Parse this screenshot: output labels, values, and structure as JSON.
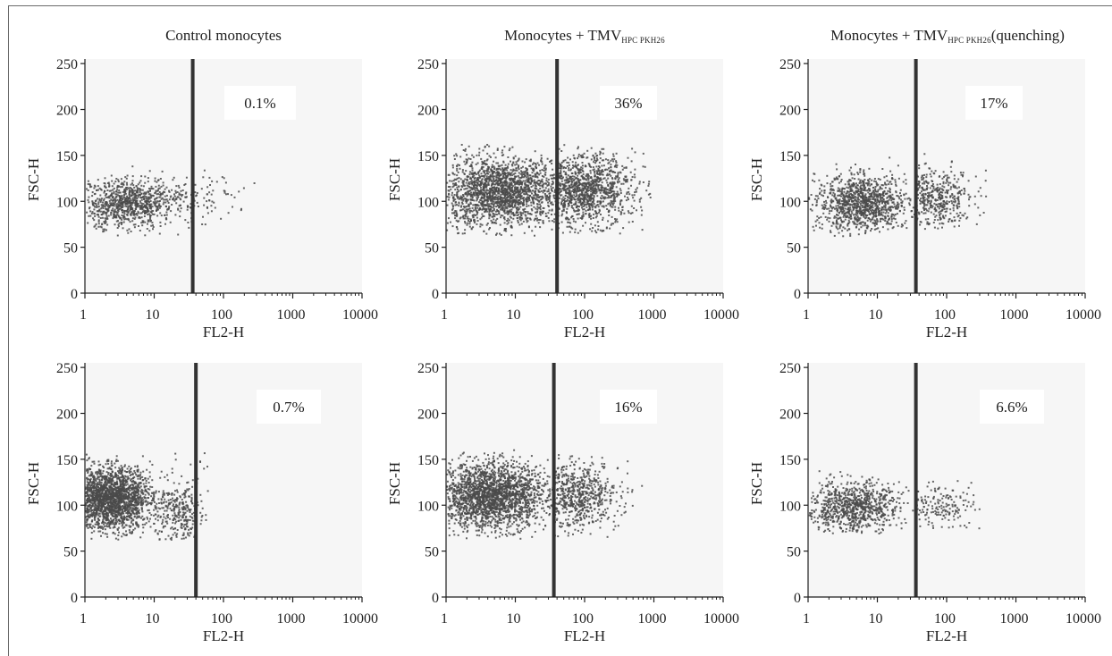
{
  "chart_data": [
    {
      "type": "scatter",
      "panel_id": "r1c1",
      "title_main": "Control monocytes",
      "title_sub": "",
      "title_suffix": "",
      "xlabel": "FL2-H",
      "ylabel": "FSC-H",
      "x_scale": "log",
      "xlim": [
        1,
        10000
      ],
      "ylim": [
        0,
        255
      ],
      "x_ticks": [
        "1",
        "10",
        "100",
        "1000",
        "10000"
      ],
      "y_ticks": [
        "0",
        "50",
        "100",
        "150",
        "200",
        "250"
      ],
      "gate_x": 36,
      "gate_percent": "0.1%",
      "scatter_clusters": [
        {
          "x_center": 4,
          "x_spread": 0.33,
          "y_center": 97,
          "y_spread": 13,
          "n": 850,
          "x_min": 1,
          "x_max": 35,
          "y_min": 60,
          "y_max": 158
        },
        {
          "x_center": 25,
          "x_spread": 0.4,
          "y_center": 104,
          "y_spread": 13,
          "n": 140,
          "x_min": 10,
          "x_max": 280,
          "y_min": 70,
          "y_max": 135
        }
      ],
      "point_count_note": "individual events rendered"
    },
    {
      "type": "scatter",
      "panel_id": "r1c2",
      "title_main": "Monocytes + TMV",
      "title_sub": "HPC PKH26",
      "title_suffix": "",
      "xlabel": "FL2-H",
      "ylabel": "FSC-H",
      "x_scale": "log",
      "xlim": [
        1,
        10000
      ],
      "ylim": [
        0,
        255
      ],
      "x_ticks": [
        "1",
        "10",
        "100",
        "1000",
        "10000"
      ],
      "y_ticks": [
        "0",
        "50",
        "100",
        "150",
        "200",
        "250"
      ],
      "gate_x": 40,
      "gate_percent": "36%",
      "scatter_clusters": [
        {
          "x_center": 6,
          "x_spread": 0.45,
          "y_center": 110,
          "y_spread": 19,
          "n": 1900,
          "x_min": 1,
          "x_max": 39,
          "y_min": 62,
          "y_max": 162
        },
        {
          "x_center": 90,
          "x_spread": 0.38,
          "y_center": 112,
          "y_spread": 19,
          "n": 1100,
          "x_min": 40,
          "x_max": 1000,
          "y_min": 63,
          "y_max": 162
        }
      ]
    },
    {
      "type": "scatter",
      "panel_id": "r1c3",
      "title_main": "Monocytes + TMV",
      "title_sub": "HPC PKH26",
      "title_suffix": "(quenching)",
      "xlabel": "FL2-H",
      "ylabel": "FSC-H",
      "x_scale": "log",
      "xlim": [
        1,
        10000
      ],
      "ylim": [
        0,
        255
      ],
      "x_ticks": [
        "1",
        "10",
        "100",
        "1000",
        "10000"
      ],
      "y_ticks": [
        "0",
        "50",
        "100",
        "150",
        "200",
        "250"
      ],
      "gate_x": 36,
      "gate_percent": "17%",
      "scatter_clusters": [
        {
          "x_center": 6,
          "x_spread": 0.33,
          "y_center": 98,
          "y_spread": 15,
          "n": 1100,
          "x_min": 1,
          "x_max": 35,
          "y_min": 62,
          "y_max": 155
        },
        {
          "x_center": 65,
          "x_spread": 0.32,
          "y_center": 102,
          "y_spread": 15,
          "n": 420,
          "x_min": 36,
          "x_max": 380,
          "y_min": 68,
          "y_max": 158
        }
      ]
    },
    {
      "type": "scatter",
      "panel_id": "r2c1",
      "title_main": "",
      "title_sub": "",
      "title_suffix": "",
      "xlabel": "FL2-H",
      "ylabel": "FSC-H",
      "x_scale": "log",
      "xlim": [
        1,
        10000
      ],
      "ylim": [
        0,
        255
      ],
      "x_ticks": [
        "1",
        "10",
        "100",
        "1000",
        "10000"
      ],
      "y_ticks": [
        "0",
        "50",
        "100",
        "150",
        "200",
        "250"
      ],
      "gate_x": 40,
      "gate_percent": "0.7%",
      "scatter_clusters": [
        {
          "x_center": 2.3,
          "x_spread": 0.3,
          "y_center": 107,
          "y_spread": 17,
          "n": 2000,
          "x_min": 1,
          "x_max": 38,
          "y_min": 62,
          "y_max": 162
        },
        {
          "x_center": 24,
          "x_spread": 0.18,
          "y_center": 90,
          "y_spread": 20,
          "n": 260,
          "x_min": 10,
          "x_max": 39,
          "y_min": 62,
          "y_max": 162
        },
        {
          "x_center": 46,
          "x_spread": 0.08,
          "y_center": 100,
          "y_spread": 25,
          "n": 20,
          "x_min": 40,
          "x_max": 60,
          "y_min": 70,
          "y_max": 160
        }
      ]
    },
    {
      "type": "scatter",
      "panel_id": "r2c2",
      "title_main": "",
      "title_sub": "",
      "title_suffix": "",
      "xlabel": "FL2-H",
      "ylabel": "FSC-H",
      "x_scale": "log",
      "xlim": [
        1,
        10000
      ],
      "ylim": [
        0,
        255
      ],
      "x_ticks": [
        "1",
        "10",
        "100",
        "1000",
        "10000"
      ],
      "y_ticks": [
        "0",
        "50",
        "100",
        "150",
        "200",
        "250"
      ],
      "gate_x": 36,
      "gate_percent": "16%",
      "scatter_clusters": [
        {
          "x_center": 4.5,
          "x_spread": 0.4,
          "y_center": 110,
          "y_spread": 18,
          "n": 2100,
          "x_min": 1,
          "x_max": 35,
          "y_min": 63,
          "y_max": 160
        },
        {
          "x_center": 70,
          "x_spread": 0.33,
          "y_center": 110,
          "y_spread": 18,
          "n": 620,
          "x_min": 36,
          "x_max": 700,
          "y_min": 65,
          "y_max": 155
        }
      ]
    },
    {
      "type": "scatter",
      "panel_id": "r2c3",
      "title_main": "",
      "title_sub": "",
      "title_suffix": "",
      "xlabel": "FL2-H",
      "ylabel": "FSC-H",
      "x_scale": "log",
      "xlim": [
        1,
        10000
      ],
      "ylim": [
        0,
        255
      ],
      "x_ticks": [
        "1",
        "10",
        "100",
        "1000",
        "10000"
      ],
      "y_ticks": [
        "0",
        "50",
        "100",
        "150",
        "200",
        "250"
      ],
      "gate_x": 36,
      "gate_percent": "6.6%",
      "scatter_clusters": [
        {
          "x_center": 4.5,
          "x_spread": 0.33,
          "y_center": 97,
          "y_spread": 14,
          "n": 850,
          "x_min": 1,
          "x_max": 35,
          "y_min": 68,
          "y_max": 158
        },
        {
          "x_center": 70,
          "x_spread": 0.32,
          "y_center": 100,
          "y_spread": 14,
          "n": 160,
          "x_min": 36,
          "x_max": 300,
          "y_min": 70,
          "y_max": 150
        }
      ]
    }
  ],
  "colors": {
    "dot": "#4a4a4a",
    "gate_line": "#333333",
    "plot_bg": "#f6f6f6",
    "percent_box": "#ffffff",
    "axis": "#1f1f1f"
  }
}
